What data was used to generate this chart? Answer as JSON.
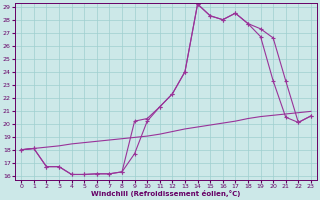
{
  "xlabel": "Windchill (Refroidissement éolien,°C)",
  "bg_color": "#cce8e8",
  "line_color": "#993399",
  "xlim_min": -0.5,
  "xlim_max": 23.5,
  "ylim_min": 15.7,
  "ylim_max": 29.3,
  "xticks": [
    0,
    1,
    2,
    3,
    4,
    5,
    6,
    7,
    8,
    9,
    10,
    11,
    12,
    13,
    14,
    15,
    16,
    17,
    18,
    19,
    20,
    21,
    22,
    23
  ],
  "yticks": [
    16,
    17,
    18,
    19,
    20,
    21,
    22,
    23,
    24,
    25,
    26,
    27,
    28,
    29
  ],
  "line1_x": [
    0,
    1,
    2,
    3,
    4,
    5,
    6,
    7,
    8,
    9,
    10,
    11,
    12,
    13,
    14,
    15,
    16,
    17,
    18,
    19,
    20,
    21,
    22,
    23
  ],
  "line1_y": [
    18.0,
    18.1,
    18.2,
    18.3,
    18.45,
    18.55,
    18.65,
    18.75,
    18.85,
    18.95,
    19.05,
    19.2,
    19.4,
    19.6,
    19.75,
    19.9,
    20.05,
    20.2,
    20.4,
    20.55,
    20.65,
    20.75,
    20.85,
    20.95
  ],
  "line2_x": [
    0,
    1,
    2,
    3,
    4,
    5,
    6,
    7,
    8,
    9,
    10,
    11,
    12,
    13,
    14,
    15,
    16,
    17,
    18,
    19,
    20,
    21,
    22,
    23
  ],
  "line2_y": [
    18.0,
    18.1,
    16.7,
    16.7,
    16.1,
    16.1,
    16.15,
    16.15,
    16.3,
    17.7,
    20.2,
    21.3,
    22.3,
    24.0,
    29.2,
    28.3,
    28.0,
    28.5,
    27.7,
    27.3,
    26.6,
    23.3,
    20.1,
    20.6
  ],
  "line3_x": [
    0,
    1,
    2,
    3,
    4,
    5,
    6,
    7,
    8,
    9,
    10,
    11,
    12,
    13,
    14,
    15,
    16,
    17,
    18,
    19,
    20,
    21,
    22,
    23
  ],
  "line3_y": [
    18.0,
    18.1,
    16.7,
    16.7,
    16.1,
    16.1,
    16.15,
    16.15,
    16.3,
    20.2,
    20.4,
    21.3,
    22.3,
    24.0,
    29.2,
    28.3,
    28.0,
    28.5,
    27.7,
    26.7,
    23.3,
    20.5,
    20.1,
    20.6
  ]
}
